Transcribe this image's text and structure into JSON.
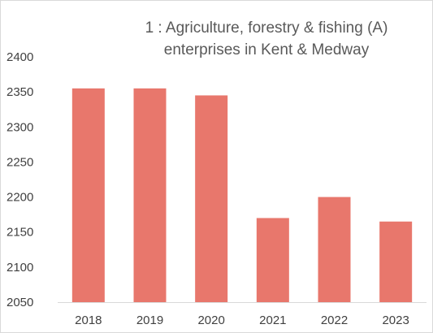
{
  "chart_data": {
    "type": "bar",
    "title": "1 : Agriculture, forestry & fishing (A) enterprises in Kent & Medway",
    "title_lines": [
      "1 : Agriculture, forestry & fishing (A)",
      "enterprises in Kent & Medway"
    ],
    "categories": [
      "2018",
      "2019",
      "2020",
      "2021",
      "2022",
      "2023"
    ],
    "values": [
      2355,
      2355,
      2345,
      2170,
      2200,
      2165
    ],
    "ylim": [
      2050,
      2400
    ],
    "yticks": [
      "2050",
      "2100",
      "2150",
      "2200",
      "2250",
      "2300",
      "2350",
      "2400"
    ],
    "xlabel": "",
    "ylabel": "",
    "grid": false,
    "legend": "none",
    "bar_color": "#e8776c",
    "axis_color": "#d9d9d9"
  }
}
